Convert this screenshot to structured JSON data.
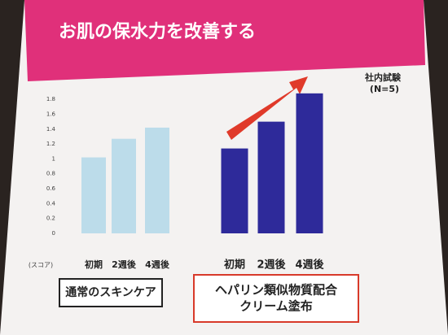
{
  "chart_data": {
    "type": "bar",
    "title": "お肌の保水力を改善する",
    "note": [
      "社内試験",
      "(N=5)"
    ],
    "y_label": "(スコア)",
    "ylim": [
      0,
      1.9
    ],
    "yticks": [
      0,
      0.2,
      0.4,
      0.6,
      0.8,
      1,
      1.2,
      1.4,
      1.6,
      1.8
    ],
    "grid": false,
    "groups": [
      {
        "name": [
          "通常のスキンケア"
        ],
        "color": "#bcdcea",
        "categories": [
          "初期",
          "2週後",
          "4週後"
        ],
        "values": [
          1.02,
          1.27,
          1.42
        ]
      },
      {
        "name": [
          "ヘパリン類似物質配合",
          "クリーム塗布"
        ],
        "color": "#2e2a9a",
        "categories": [
          "初期",
          "2週後",
          "4週後"
        ],
        "values": [
          1.14,
          1.5,
          1.88
        ]
      }
    ]
  }
}
